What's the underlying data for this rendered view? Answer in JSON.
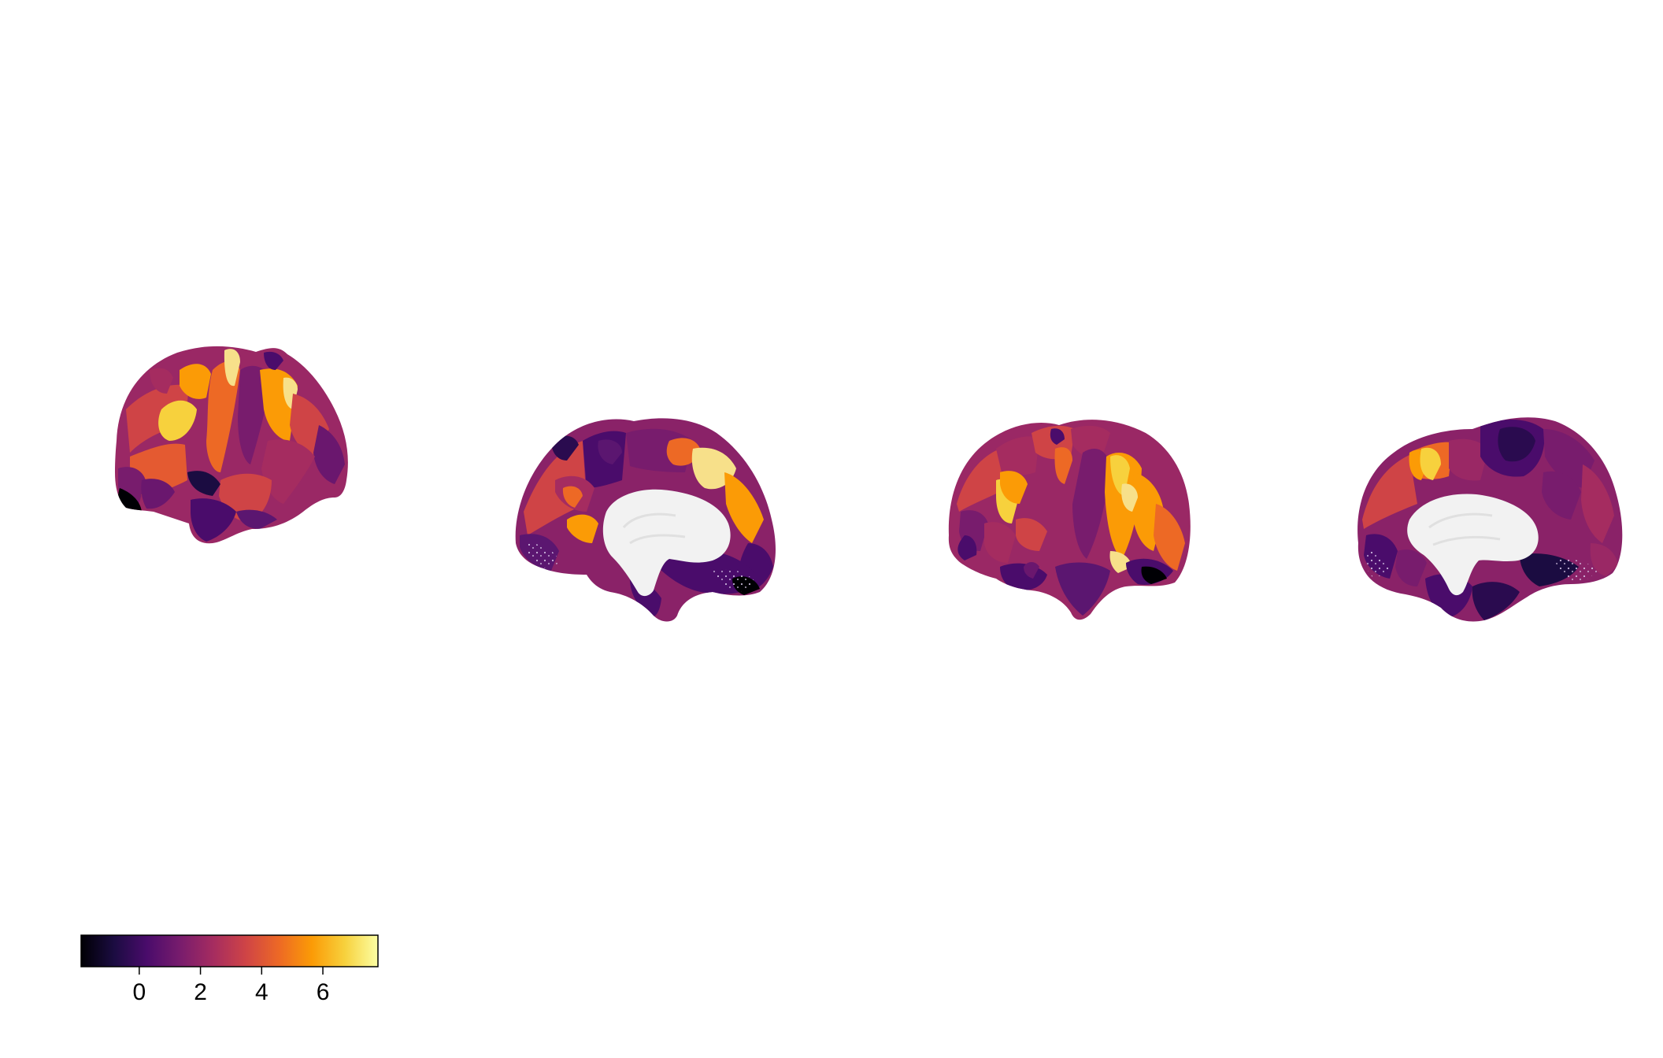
{
  "figure": {
    "views": [
      {
        "id": "left-lateral"
      },
      {
        "id": "left-medial"
      },
      {
        "id": "right-lateral"
      },
      {
        "id": "right-medial"
      }
    ]
  },
  "colorbar": {
    "colormap": "inferno",
    "range": [
      -1.9,
      7.8
    ],
    "stops": [
      "#000004",
      "#1b0c41",
      "#4a0c6b",
      "#781c6d",
      "#a52c60",
      "#cf4446",
      "#ed6925",
      "#fb9b06",
      "#f7d13d",
      "#fcffa4"
    ],
    "ticks": [
      0,
      2,
      4,
      6
    ],
    "tick_labels": [
      "0",
      "2",
      "4",
      "6"
    ]
  }
}
